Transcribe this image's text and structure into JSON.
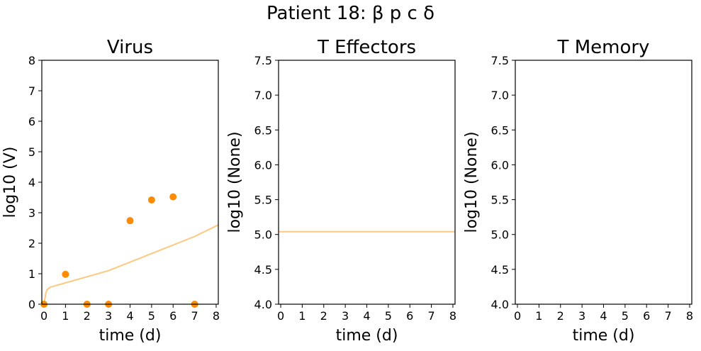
{
  "figure": {
    "suptitle": "Patient 18: β p c δ"
  },
  "chart_data": [
    {
      "type": "scatter",
      "title": "Virus",
      "xlabel": "time (d)",
      "ylabel": "log10 (V)",
      "xlim": [
        -0.1,
        8.1
      ],
      "ylim": [
        0,
        8
      ],
      "xticks": [
        0,
        1,
        2,
        3,
        4,
        5,
        6,
        7,
        8
      ],
      "yticks": [
        0,
        1,
        2,
        3,
        4,
        5,
        6,
        7,
        8
      ],
      "grid": false,
      "points": {
        "color": "#ff8c00",
        "x": [
          0,
          1,
          2,
          3,
          4,
          5,
          6,
          7
        ],
        "y": [
          0,
          0.98,
          0,
          0,
          2.74,
          3.42,
          3.52,
          0
        ]
      },
      "fit_line": {
        "color": "#fdc981",
        "x": [
          0,
          0.08,
          0.15,
          0.3,
          0.6,
          1,
          2,
          3,
          4,
          5,
          6,
          7,
          8.1
        ],
        "y": [
          0,
          0.35,
          0.48,
          0.56,
          0.62,
          0.7,
          0.9,
          1.1,
          1.38,
          1.66,
          1.94,
          2.22,
          2.6
        ]
      }
    },
    {
      "type": "line",
      "title": "T Effectors",
      "xlabel": "time (d)",
      "ylabel": "log10 (None)",
      "xlim": [
        -0.1,
        8.1
      ],
      "ylim": [
        4.0,
        7.5
      ],
      "xticks": [
        0,
        1,
        2,
        3,
        4,
        5,
        6,
        7,
        8
      ],
      "yticks": [
        4.0,
        4.5,
        5.0,
        5.5,
        6.0,
        6.5,
        7.0,
        7.5
      ],
      "grid": false,
      "fit_line": {
        "color": "#fdc981",
        "x": [
          -0.1,
          8.1
        ],
        "y": [
          5.04,
          5.04
        ]
      }
    },
    {
      "type": "line",
      "title": "T Memory",
      "xlabel": "time (d)",
      "ylabel": "log10 (None)",
      "xlim": [
        -0.1,
        8.1
      ],
      "ylim": [
        4.0,
        7.5
      ],
      "xticks": [
        0,
        1,
        2,
        3,
        4,
        5,
        6,
        7,
        8
      ],
      "yticks": [
        4.0,
        4.5,
        5.0,
        5.5,
        6.0,
        6.5,
        7.0,
        7.5
      ],
      "grid": false
    }
  ]
}
